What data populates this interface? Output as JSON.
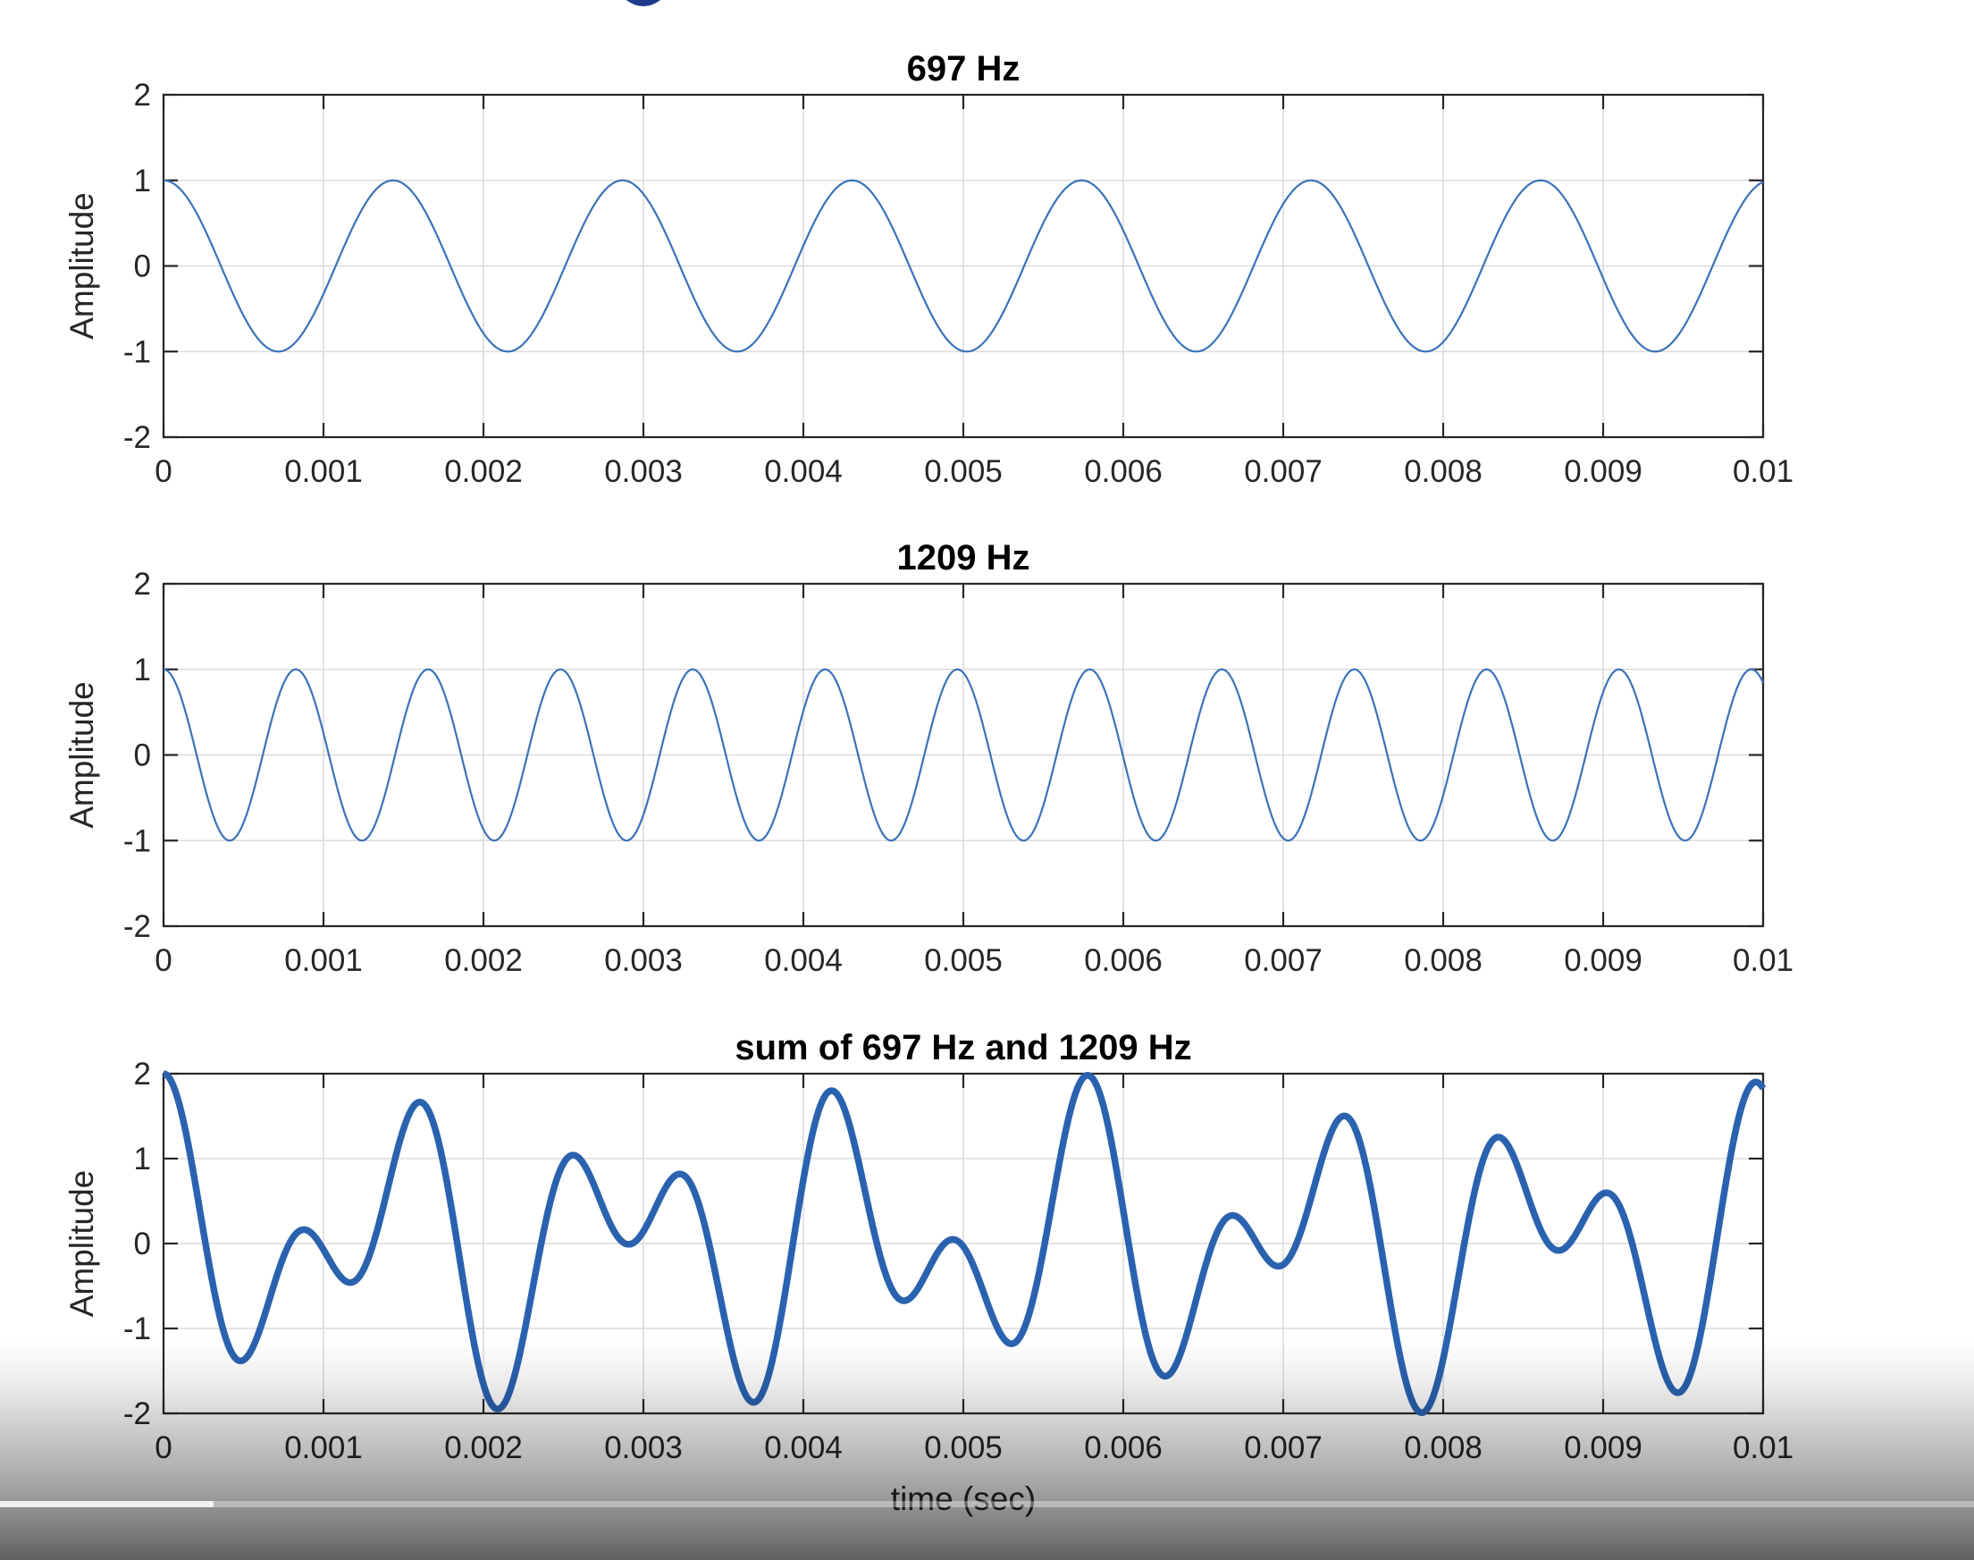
{
  "colors": {
    "line": "#3a73b8",
    "line_bold": "#2a62b0",
    "logo": "#1d3b8c"
  },
  "player": {
    "progress_fraction": 0.108
  },
  "chart_data": [
    {
      "type": "line",
      "title": "697 Hz",
      "xlabel": "",
      "ylabel": "Amplitude",
      "xlim": [
        0,
        0.01
      ],
      "ylim": [
        -2,
        2
      ],
      "grid": true,
      "frequencies_hz": [
        697
      ],
      "series": [
        {
          "values_formula": "cos(2*pi*697*t)",
          "line_weight": "thin"
        }
      ],
      "xticks": [
        "0",
        "0.001",
        "0.002",
        "0.003",
        "0.004",
        "0.005",
        "0.006",
        "0.007",
        "0.008",
        "0.009",
        "0.01"
      ],
      "yticks": [
        "2",
        "1",
        "0",
        "-1",
        "-2"
      ]
    },
    {
      "type": "line",
      "title": "1209 Hz",
      "xlabel": "",
      "ylabel": "Amplitude",
      "xlim": [
        0,
        0.01
      ],
      "ylim": [
        -2,
        2
      ],
      "grid": true,
      "frequencies_hz": [
        1209
      ],
      "series": [
        {
          "values_formula": "cos(2*pi*1209*t)",
          "line_weight": "thin"
        }
      ],
      "xticks": [
        "0",
        "0.001",
        "0.002",
        "0.003",
        "0.004",
        "0.005",
        "0.006",
        "0.007",
        "0.008",
        "0.009",
        "0.01"
      ],
      "yticks": [
        "2",
        "1",
        "0",
        "-1",
        "-2"
      ]
    },
    {
      "type": "line",
      "title": "sum of 697 Hz and 1209 Hz",
      "xlabel": "time (sec)",
      "ylabel": "Amplitude",
      "xlim": [
        0,
        0.01
      ],
      "ylim": [
        -2,
        2
      ],
      "grid": true,
      "frequencies_hz": [
        697,
        1209
      ],
      "series": [
        {
          "values_formula": "cos(2*pi*697*t) + cos(2*pi*1209*t)",
          "line_weight": "bold"
        }
      ],
      "xticks": [
        "0",
        "0.001",
        "0.002",
        "0.003",
        "0.004",
        "0.005",
        "0.006",
        "0.007",
        "0.008",
        "0.009",
        "0.01"
      ],
      "yticks": [
        "2",
        "1",
        "0",
        "-1",
        "-2"
      ]
    }
  ]
}
